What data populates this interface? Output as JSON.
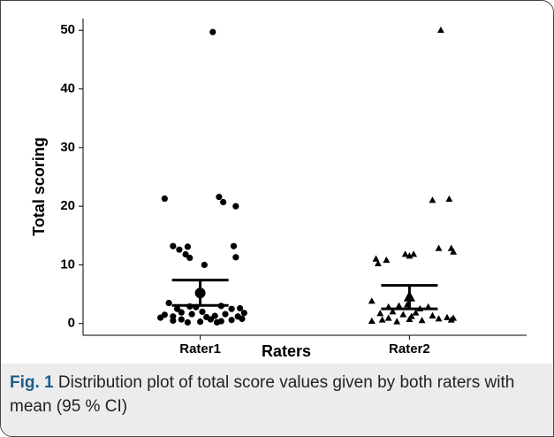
{
  "chart_data": {
    "type": "scatter",
    "xlabel": "Raters",
    "ylabel": "Total scoring",
    "xlim": [
      0.44,
      2.56
    ],
    "xticks": [
      {
        "value": 1,
        "label": "Rater1"
      },
      {
        "value": 2,
        "label": "Rater2"
      }
    ],
    "ylim": [
      -2,
      52
    ],
    "yticks": [
      0,
      10,
      20,
      30,
      40,
      50
    ],
    "series": [
      {
        "marker": "circle",
        "color": "#000000",
        "x": [
          1.06,
          0.83,
          1.09,
          1.11,
          1.17,
          0.87,
          0.9,
          0.94,
          1.16,
          0.93,
          0.95,
          1.02,
          1.17,
          0.85,
          0.89,
          0.95,
          0.98,
          1.1,
          1.15,
          1.19,
          0.83,
          0.87,
          0.91,
          0.96,
          1.03,
          1.07,
          1.12,
          1.18,
          1.2,
          0.87,
          0.91,
          1.0,
          1.08,
          1.1,
          1.15,
          0.94,
          1.05,
          0.81,
          1.21,
          1.01
        ],
        "values": [
          49.7,
          21.3,
          21.6,
          20.7,
          20,
          13.2,
          12.6,
          13.1,
          13.2,
          11.8,
          11.2,
          10,
          11.3,
          3.5,
          2.5,
          2.9,
          2.8,
          3,
          2.5,
          2.6,
          1.5,
          1.2,
          1.9,
          1.6,
          1.1,
          1.3,
          1.6,
          1.2,
          0.8,
          0.5,
          0.7,
          0.3,
          0.2,
          0.4,
          0.6,
          0.2,
          0.7,
          1.0,
          1.8,
          2.0
        ],
        "mean": 5.2,
        "ci": [
          3.1,
          7.4
        ]
      },
      {
        "marker": "triangle",
        "color": "#000000",
        "x": [
          2.15,
          2.11,
          2.19,
          1.84,
          1.89,
          1.85,
          1.98,
          2.0,
          2.02,
          2.14,
          2.2,
          2.21,
          1.82,
          1.9,
          1.95,
          1.99,
          2.05,
          2.09,
          1.86,
          1.92,
          1.97,
          2.03,
          2.11,
          2.18,
          2.21,
          1.82,
          1.87,
          1.94,
          2.0,
          2.06,
          2.14,
          2.2,
          2.01,
          1.9
        ],
        "values": [
          50,
          21,
          21.2,
          11,
          10.8,
          10.2,
          11.8,
          11.5,
          11.8,
          12.8,
          12.8,
          12.2,
          3.8,
          2.8,
          3,
          3.2,
          2.5,
          2.8,
          1.7,
          2,
          1.5,
          1.8,
          1.3,
          1,
          0.9,
          0.4,
          0.6,
          0.3,
          0.7,
          0.5,
          0.8,
          0.6,
          1.2,
          0.9
        ],
        "mean": 4.5,
        "ci": [
          2.5,
          6.5
        ]
      }
    ]
  },
  "caption": {
    "label": "Fig. 1",
    "text": "Distribution plot of total score values given by both raters with mean (95 % CI)"
  }
}
